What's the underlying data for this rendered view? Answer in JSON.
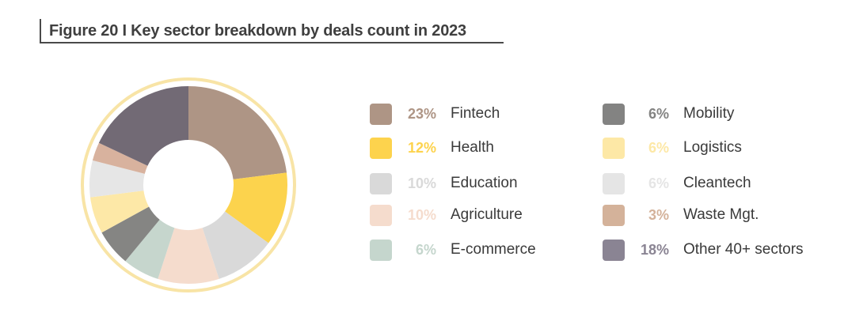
{
  "figure_title": "Figure 20 I Key sector breakdown by deals count in 2023",
  "chart_data": {
    "type": "pie",
    "title": "Figure 20 I Key sector breakdown by deals count in 2023",
    "slices": [
      {
        "label": "Fintech",
        "value": 23,
        "value_label": "23%",
        "color": "#ae9585"
      },
      {
        "label": "Health",
        "value": 12,
        "value_label": "12%",
        "color": "#fcd34d"
      },
      {
        "label": "Education",
        "value": 10,
        "value_label": "10%",
        "color": "#d9d9d9"
      },
      {
        "label": "Agriculture",
        "value": 10,
        "value_label": "10%",
        "color": "#f5dccd"
      },
      {
        "label": "E-commerce",
        "value": 6,
        "value_label": "6%",
        "color": "#c6d6cd"
      },
      {
        "label": "Mobility",
        "value": 6,
        "value_label": "6%",
        "color": "#858583"
      },
      {
        "label": "Logistics",
        "value": 6,
        "value_label": "6%",
        "color": "#fde8a7"
      },
      {
        "label": "Cleantech",
        "value": 6,
        "value_label": "6%",
        "color": "#e6e6e6"
      },
      {
        "label": "Waste Mgt.",
        "value": 3,
        "value_label": "3%",
        "color": "#d8b29e"
      },
      {
        "label": "Other 40+ sectors",
        "value": 18,
        "value_label": "18%",
        "color": "#726a75"
      }
    ],
    "legend_colors": [
      "#ae9585",
      "#fdd34d",
      "#d9d9d9",
      "#f5dccd",
      "#c5d6cd",
      "#838382",
      "#fde8a6",
      "#e5e5e5",
      "#d4b29a",
      "#8a8493"
    ],
    "outer_ring_color": "#f8e4a6",
    "legend_placement": "right"
  }
}
